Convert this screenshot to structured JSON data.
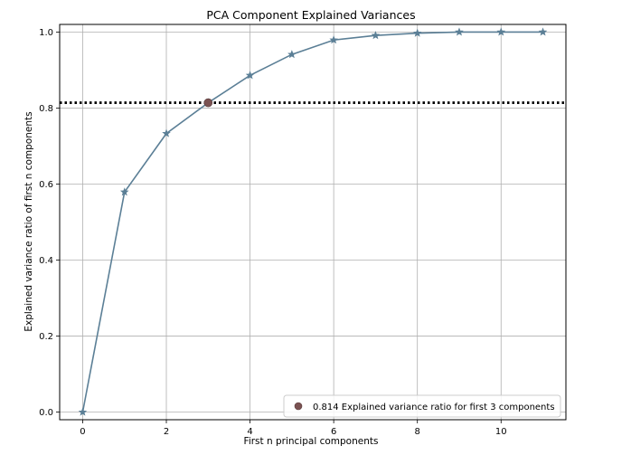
{
  "chart_data": {
    "type": "line",
    "title": "PCA Component Explained Variances",
    "xlabel": "First n principal components",
    "ylabel": "Explained variance ratio of first n components",
    "xlim": [
      -0.55,
      11.55
    ],
    "ylim": [
      -0.02,
      1.02
    ],
    "xticks": [
      0,
      2,
      4,
      6,
      8,
      10
    ],
    "yticks": [
      0.0,
      0.2,
      0.4,
      0.6,
      0.8,
      1.0
    ],
    "xtick_labels": [
      "0",
      "2",
      "4",
      "6",
      "8",
      "10"
    ],
    "ytick_labels": [
      "0.0",
      "0.2",
      "0.4",
      "0.6",
      "0.8",
      "1.0"
    ],
    "grid": true,
    "series": [
      {
        "marker": "star",
        "color": "#5b7f96",
        "x": [
          0,
          1,
          2,
          3,
          4,
          5,
          6,
          7,
          8,
          9,
          10,
          11
        ],
        "y": [
          0.0,
          0.579,
          0.733,
          0.814,
          0.886,
          0.941,
          0.979,
          0.991,
          0.997,
          1.0,
          1.0,
          1.0
        ]
      }
    ],
    "highlight": {
      "x": 3,
      "y": 0.814,
      "color": "#7a5252",
      "label": "0.814 Explained variance ratio for first 3 components"
    },
    "hline": {
      "y": 0.814,
      "style": "dotted",
      "color": "#000000"
    },
    "legend": {
      "position": "bottom-right"
    }
  }
}
